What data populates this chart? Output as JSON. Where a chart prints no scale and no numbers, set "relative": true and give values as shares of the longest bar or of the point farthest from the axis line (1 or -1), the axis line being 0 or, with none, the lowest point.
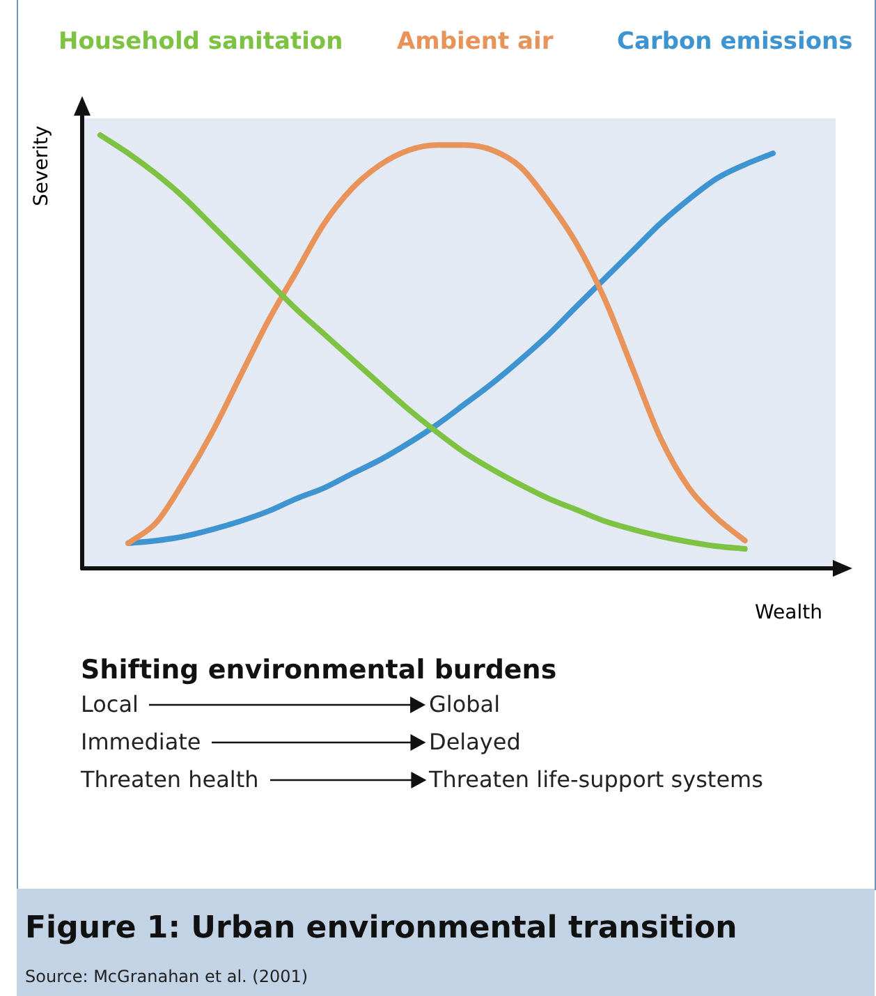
{
  "chart_data": {
    "type": "line",
    "relative": true,
    "legend": "top",
    "grid": false,
    "marker": "none",
    "line_style": "solid",
    "title": "Figure 1: Urban environmental transition",
    "xlabel": "Wealth",
    "ylabel": "Severity",
    "categories": [
      null,
      null,
      null,
      null,
      null,
      null,
      null,
      null,
      null,
      null,
      null,
      null,
      null,
      null,
      null,
      null,
      null,
      null,
      null,
      null,
      null,
      null,
      null,
      null,
      null
    ],
    "series": [
      {
        "name": "Household sanitation",
        "color": "#7dc242",
        "values": [
          1.0,
          0.958,
          0.91,
          0.855,
          0.791,
          0.727,
          0.662,
          0.598,
          0.54,
          0.482,
          0.424,
          0.367,
          0.315,
          0.267,
          0.228,
          0.193,
          0.161,
          0.135,
          0.109,
          0.09,
          0.074,
          0.061,
          0.051,
          0.045,
          null
        ]
      },
      {
        "name": "Ambient air",
        "color": "#e8935a",
        "values": [
          null,
          0.058,
          0.106,
          0.203,
          0.315,
          0.444,
          0.572,
          0.685,
          0.797,
          0.878,
          0.932,
          0.965,
          0.977,
          0.977,
          0.965,
          0.926,
          0.846,
          0.749,
          0.621,
          0.46,
          0.299,
          0.186,
          0.116,
          0.064,
          null
        ]
      },
      {
        "name": "Carbon emissions",
        "color": "#3d94d1",
        "values": [
          null,
          0.058,
          0.064,
          0.074,
          0.09,
          0.109,
          0.132,
          0.161,
          0.186,
          0.219,
          0.251,
          0.289,
          0.331,
          0.379,
          0.428,
          0.482,
          0.54,
          0.605,
          0.669,
          0.733,
          0.797,
          0.852,
          0.9,
          0.932,
          0.958
        ]
      }
    ],
    "annotations": [
      "Shifting environmental burdens",
      "Local",
      "Global",
      "Immediate",
      "Delayed",
      "Threaten health",
      "Threaten life-support systems",
      "Source: McGranahan et al. (2001)"
    ]
  }
}
